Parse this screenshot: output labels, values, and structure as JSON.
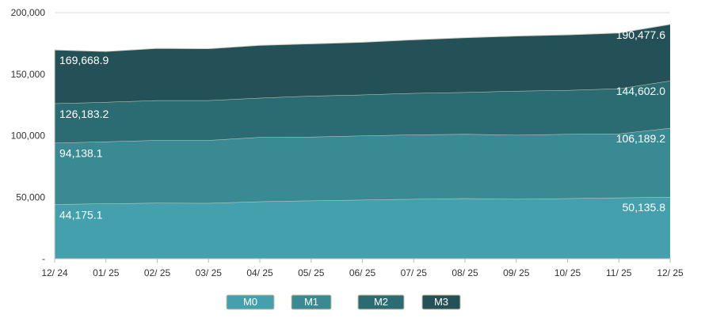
{
  "chart_data": {
    "type": "area",
    "stacked": true,
    "categories": [
      "12/ 24",
      "01/ 25",
      "02/ 25",
      "03/ 25",
      "04/ 25",
      "05/ 25",
      "06/ 25",
      "07/ 25",
      "08/ 25",
      "09/ 25",
      "10/ 25",
      "11/ 25",
      "12/ 25"
    ],
    "y_ticks": [
      "-",
      "50,000",
      "100,000",
      "150,000",
      "200,000"
    ],
    "ylim": [
      0,
      200000
    ],
    "grid": "horizontal",
    "legend_position": "bottom",
    "series": [
      {
        "name": "M0",
        "color": "#43a0ac",
        "values": [
          44175.1,
          44800,
          45300,
          45200,
          46500,
          47200,
          47800,
          48500,
          49000,
          48500,
          49000,
          49600,
          50135.8
        ]
      },
      {
        "name": "M1",
        "color": "#3a8a94",
        "values": [
          94138.1,
          95200,
          96300,
          96300,
          98800,
          99000,
          100000,
          100800,
          101300,
          100600,
          101300,
          101600,
          106189.2
        ]
      },
      {
        "name": "M2",
        "color": "#2b6b72",
        "values": [
          126183.2,
          127300,
          128700,
          128700,
          130700,
          132300,
          133300,
          134600,
          135300,
          136300,
          137000,
          138300,
          144602.0
        ]
      },
      {
        "name": "M3",
        "color": "#245158",
        "values": [
          169668.9,
          168500,
          171000,
          170700,
          173500,
          174700,
          176000,
          178000,
          179700,
          181000,
          182000,
          183500,
          190477.6
        ]
      }
    ],
    "data_labels": [
      {
        "series": 0,
        "index": 0,
        "text": "44,175.1"
      },
      {
        "series": 0,
        "index": 12,
        "text": "50,135.8"
      },
      {
        "series": 1,
        "index": 0,
        "text": "94,138.1"
      },
      {
        "series": 1,
        "index": 12,
        "text": "106,189.2"
      },
      {
        "series": 2,
        "index": 0,
        "text": "126,183.2"
      },
      {
        "series": 2,
        "index": 12,
        "text": "144,602.0"
      },
      {
        "series": 3,
        "index": 0,
        "text": "169,668.9"
      },
      {
        "series": 3,
        "index": 12,
        "text": "190,477.6"
      }
    ]
  }
}
